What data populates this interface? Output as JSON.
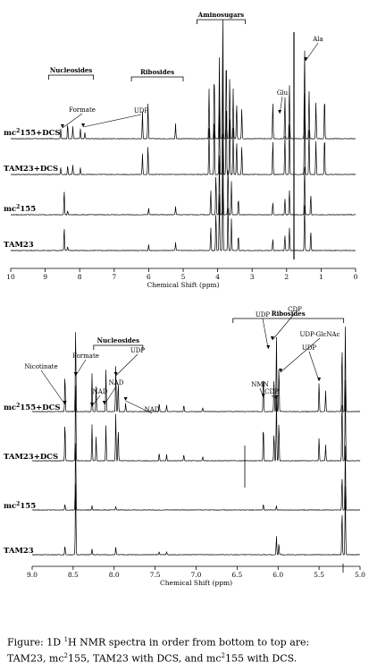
{
  "chart_data": [
    {
      "type": "line",
      "title": "",
      "xlabel": "Chemical Shift (ppm)",
      "ylabel": "",
      "xlim": [
        10,
        0
      ],
      "x_reversed": true,
      "x_ticks": [
        "10",
        "9",
        "8",
        "7",
        "6",
        "5",
        "4",
        "3",
        "2",
        "1",
        "0"
      ],
      "series": [
        {
          "name": "mc²155+DCS",
          "peaks": [
            {
              "x": 8.55,
              "h": 0.08
            },
            {
              "x": 8.35,
              "h": 0.12
            },
            {
              "x": 8.2,
              "h": 0.1
            },
            {
              "x": 7.98,
              "h": 0.08
            },
            {
              "x": 7.85,
              "h": 0.05
            },
            {
              "x": 6.18,
              "h": 0.22
            },
            {
              "x": 6.02,
              "h": 0.3
            },
            {
              "x": 5.22,
              "h": 0.12
            },
            {
              "x": 4.25,
              "h": 0.4
            },
            {
              "x": 4.1,
              "h": 0.55
            },
            {
              "x": 3.95,
              "h": 0.65
            },
            {
              "x": 3.85,
              "h": 1.0
            },
            {
              "x": 3.75,
              "h": 0.7
            },
            {
              "x": 3.65,
              "h": 0.5
            },
            {
              "x": 3.55,
              "h": 0.4
            },
            {
              "x": 3.45,
              "h": 0.3
            },
            {
              "x": 3.3,
              "h": 0.25
            },
            {
              "x": 2.4,
              "h": 0.3
            },
            {
              "x": 2.05,
              "h": 0.35
            },
            {
              "x": 1.92,
              "h": 0.45
            },
            {
              "x": 1.48,
              "h": 0.75
            },
            {
              "x": 1.35,
              "h": 0.4
            },
            {
              "x": 1.15,
              "h": 0.3
            },
            {
              "x": 0.9,
              "h": 0.35
            }
          ]
        },
        {
          "name": "TAM23+DCS",
          "peaks": [
            {
              "x": 8.55,
              "h": 0.06
            },
            {
              "x": 8.35,
              "h": 0.08
            },
            {
              "x": 8.2,
              "h": 0.08
            },
            {
              "x": 7.98,
              "h": 0.06
            },
            {
              "x": 6.18,
              "h": 0.18
            },
            {
              "x": 6.02,
              "h": 0.25
            },
            {
              "x": 4.25,
              "h": 0.4
            },
            {
              "x": 4.1,
              "h": 0.55
            },
            {
              "x": 3.95,
              "h": 0.65
            },
            {
              "x": 3.85,
              "h": 1.0
            },
            {
              "x": 3.75,
              "h": 0.7
            },
            {
              "x": 3.65,
              "h": 0.5
            },
            {
              "x": 3.55,
              "h": 0.4
            },
            {
              "x": 3.45,
              "h": 0.3
            },
            {
              "x": 3.3,
              "h": 0.25
            },
            {
              "x": 2.4,
              "h": 0.3
            },
            {
              "x": 2.05,
              "h": 0.35
            },
            {
              "x": 1.92,
              "h": 0.45
            },
            {
              "x": 1.48,
              "h": 0.75
            },
            {
              "x": 1.35,
              "h": 0.4
            },
            {
              "x": 1.15,
              "h": 0.3
            },
            {
              "x": 0.9,
              "h": 0.35
            }
          ]
        },
        {
          "name": "mc²155",
          "peaks": [
            {
              "x": 8.45,
              "h": 0.3
            },
            {
              "x": 8.35,
              "h": 0.05
            },
            {
              "x": 6.0,
              "h": 0.08
            },
            {
              "x": 5.22,
              "h": 0.1
            },
            {
              "x": 4.2,
              "h": 0.3
            },
            {
              "x": 4.05,
              "h": 0.5
            },
            {
              "x": 3.95,
              "h": 0.7
            },
            {
              "x": 3.85,
              "h": 1.0
            },
            {
              "x": 3.7,
              "h": 0.6
            },
            {
              "x": 3.6,
              "h": 0.4
            },
            {
              "x": 3.4,
              "h": 0.2
            },
            {
              "x": 2.4,
              "h": 0.15
            },
            {
              "x": 2.05,
              "h": 0.2
            },
            {
              "x": 1.92,
              "h": 0.3
            },
            {
              "x": 1.48,
              "h": 0.6
            },
            {
              "x": 1.3,
              "h": 0.25
            }
          ]
        },
        {
          "name": "TAM23",
          "peaks": [
            {
              "x": 8.45,
              "h": 0.3
            },
            {
              "x": 8.35,
              "h": 0.05
            },
            {
              "x": 6.0,
              "h": 0.08
            },
            {
              "x": 5.22,
              "h": 0.1
            },
            {
              "x": 4.2,
              "h": 0.3
            },
            {
              "x": 4.05,
              "h": 0.5
            },
            {
              "x": 3.95,
              "h": 0.7
            },
            {
              "x": 3.85,
              "h": 1.0
            },
            {
              "x": 3.7,
              "h": 0.6
            },
            {
              "x": 3.6,
              "h": 0.4
            },
            {
              "x": 3.4,
              "h": 0.2
            },
            {
              "x": 2.4,
              "h": 0.15
            },
            {
              "x": 2.05,
              "h": 0.2
            },
            {
              "x": 1.92,
              "h": 0.3
            },
            {
              "x": 1.48,
              "h": 0.6
            },
            {
              "x": 1.3,
              "h": 0.25
            }
          ]
        }
      ],
      "annotations": {
        "groups": [
          {
            "label": "Nucleosides",
            "from": 8.9,
            "to": 7.6
          },
          {
            "label": "Ribosides",
            "from": 6.5,
            "to": 5.0
          },
          {
            "label": "Aminosugars",
            "from": 4.6,
            "to": 3.2
          }
        ],
        "arrows": [
          {
            "label": "Formate",
            "x": 8.5
          },
          {
            "label": "UDP",
            "x": 7.9
          },
          {
            "label": "Glu",
            "x": 2.2
          },
          {
            "label": "Ala",
            "x": 1.45
          }
        ]
      },
      "grid": false
    },
    {
      "type": "line",
      "title": "",
      "xlabel": "Chemical Shift (ppm)",
      "ylabel": "",
      "xlim": [
        9.0,
        5.0
      ],
      "x_reversed": true,
      "x_ticks": [
        "9.0",
        "8.5",
        "8.0",
        "7.5",
        "7.0",
        "6.5",
        "6.0",
        "5.5",
        "5.0"
      ],
      "series": [
        {
          "name": "mc²155+DCS",
          "peaks": [
            {
              "x": 8.6,
              "h": 0.45
            },
            {
              "x": 8.47,
              "h": 1.0
            },
            {
              "x": 8.27,
              "h": 0.45
            },
            {
              "x": 8.22,
              "h": 0.3
            },
            {
              "x": 8.1,
              "h": 0.5
            },
            {
              "x": 7.98,
              "h": 0.55
            },
            {
              "x": 7.95,
              "h": 0.35
            },
            {
              "x": 7.86,
              "h": 0.1
            },
            {
              "x": 7.45,
              "h": 0.1
            },
            {
              "x": 7.36,
              "h": 0.08
            },
            {
              "x": 7.15,
              "h": 0.08
            },
            {
              "x": 6.92,
              "h": 0.05
            },
            {
              "x": 6.18,
              "h": 0.45
            },
            {
              "x": 6.05,
              "h": 0.4
            },
            {
              "x": 6.02,
              "h": 0.9
            },
            {
              "x": 5.99,
              "h": 0.55
            },
            {
              "x": 5.5,
              "h": 0.35
            },
            {
              "x": 5.42,
              "h": 0.25
            },
            {
              "x": 5.22,
              "h": 0.8
            },
            {
              "x": 5.18,
              "h": 1.0
            }
          ]
        },
        {
          "name": "TAM23+DCS",
          "peaks": [
            {
              "x": 8.6,
              "h": 0.5
            },
            {
              "x": 8.47,
              "h": 1.0
            },
            {
              "x": 8.27,
              "h": 0.45
            },
            {
              "x": 8.22,
              "h": 0.3
            },
            {
              "x": 8.1,
              "h": 0.45
            },
            {
              "x": 7.98,
              "h": 0.6
            },
            {
              "x": 7.95,
              "h": 0.4
            },
            {
              "x": 7.45,
              "h": 0.1
            },
            {
              "x": 7.36,
              "h": 0.08
            },
            {
              "x": 7.15,
              "h": 0.08
            },
            {
              "x": 6.92,
              "h": 0.05
            },
            {
              "x": 6.18,
              "h": 0.45
            },
            {
              "x": 6.05,
              "h": 0.35
            },
            {
              "x": 6.02,
              "h": 0.8
            },
            {
              "x": 5.99,
              "h": 0.5
            },
            {
              "x": 5.5,
              "h": 0.3
            },
            {
              "x": 5.42,
              "h": 0.2
            },
            {
              "x": 5.22,
              "h": 0.8
            },
            {
              "x": 5.18,
              "h": 1.0
            }
          ]
        },
        {
          "name": "mc²155",
          "peaks": [
            {
              "x": 8.6,
              "h": 0.08
            },
            {
              "x": 8.47,
              "h": 1.0
            },
            {
              "x": 8.27,
              "h": 0.06
            },
            {
              "x": 7.98,
              "h": 0.05
            },
            {
              "x": 6.18,
              "h": 0.08
            },
            {
              "x": 6.02,
              "h": 0.06
            },
            {
              "x": 5.22,
              "h": 0.5
            },
            {
              "x": 5.18,
              "h": 0.9
            }
          ]
        },
        {
          "name": "TAM23",
          "peaks": [
            {
              "x": 8.6,
              "h": 0.12
            },
            {
              "x": 8.47,
              "h": 1.0
            },
            {
              "x": 8.27,
              "h": 0.08
            },
            {
              "x": 7.98,
              "h": 0.1
            },
            {
              "x": 7.45,
              "h": 0.04
            },
            {
              "x": 7.36,
              "h": 0.04
            },
            {
              "x": 6.02,
              "h": 0.25
            },
            {
              "x": 5.99,
              "h": 0.15
            },
            {
              "x": 5.22,
              "h": 0.6
            },
            {
              "x": 5.18,
              "h": 0.9
            }
          ]
        }
      ],
      "annotations": {
        "groups": [
          {
            "label": "Nucleosides",
            "from": 8.25,
            "to": 7.65
          },
          {
            "label": "Ribosides",
            "from": 6.55,
            "to": 5.2
          }
        ],
        "arrows": [
          {
            "label": "Nicotinate",
            "x": 8.6
          },
          {
            "label": "Formate",
            "x": 8.47
          },
          {
            "label": "NAD",
            "x": 8.27
          },
          {
            "label": "NAD",
            "x": 8.12
          },
          {
            "label": "UDP",
            "x": 7.98
          },
          {
            "label": "NAD",
            "x": 7.86
          },
          {
            "label": "NMN",
            "x": 6.18
          },
          {
            "label": "UDP",
            "x": 6.12
          },
          {
            "label": "CDP",
            "x": 6.07
          },
          {
            "label": "CDP",
            "x": 6.02
          },
          {
            "label": "UDP-GlcNAc",
            "x": 5.97
          },
          {
            "label": "UDP",
            "x": 5.5
          }
        ]
      },
      "grid": false
    }
  ],
  "caption": {
    "line1_a": "Figure:  1D ",
    "line1_sup": "1",
    "line1_b": "H NMR spectra in order from bottom to top are:",
    "line2_a": "TAM23, mc",
    "line2_sup1": "2",
    "line2_b": "155, TAM23 with DCS, and mc",
    "line2_sup2": "2",
    "line2_c": "155 with DCS."
  }
}
